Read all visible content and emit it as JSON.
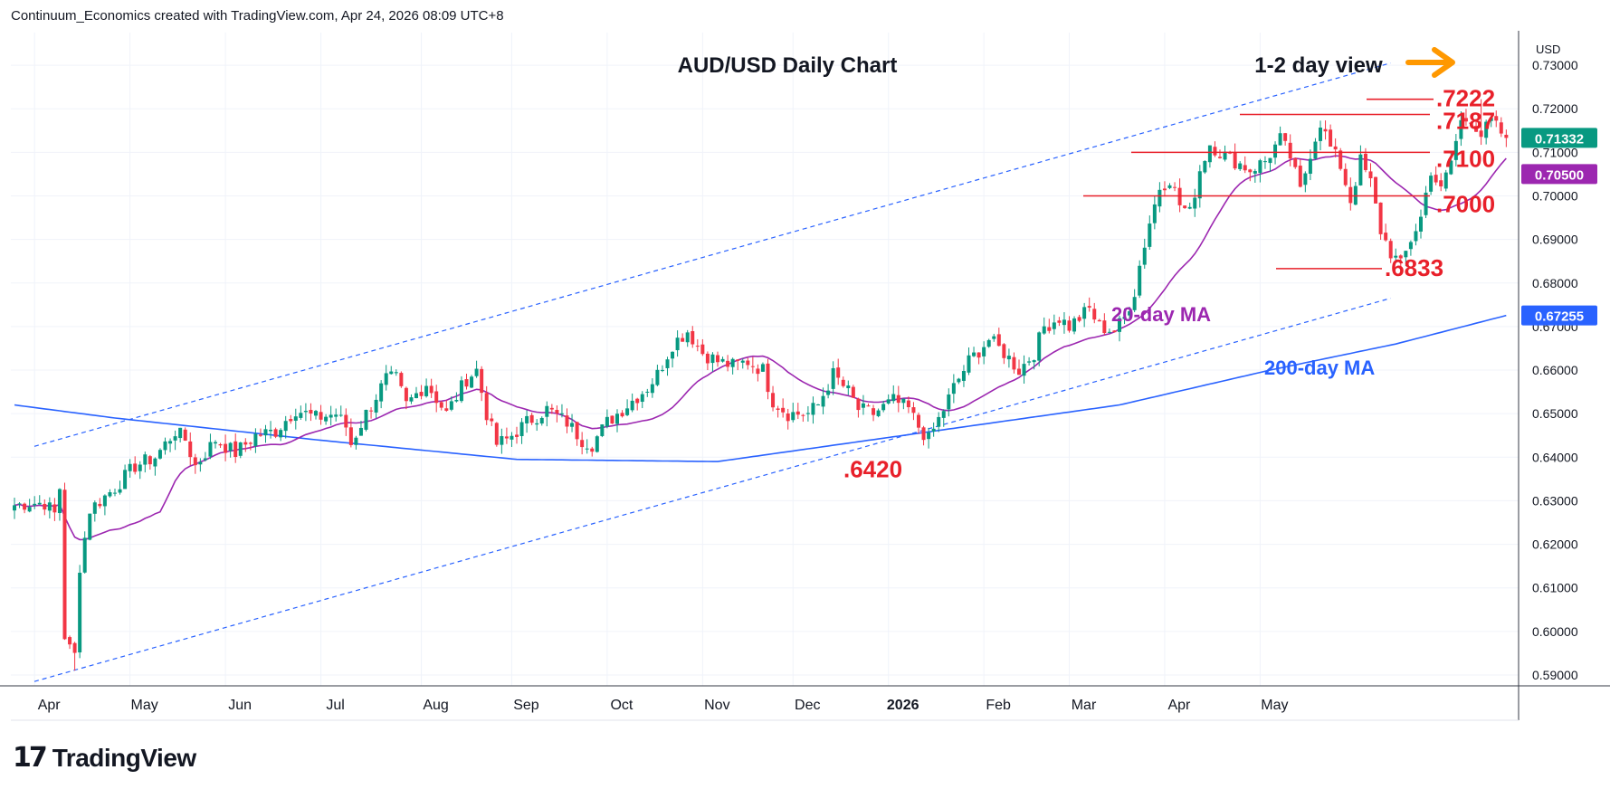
{
  "header": {
    "attribution": "Continuum_Economics created with TradingView.com, Apr 24, 2026 08:09 UTC+8"
  },
  "footer": {
    "logo_mark": "17",
    "brand": "TradingView"
  },
  "chart_data": {
    "type": "candlestick",
    "title": "AUD/USD Daily Chart",
    "subtitle": "1-2 day view",
    "currency_label": "USD",
    "ylim": [
      0.5875,
      0.7375
    ],
    "y_ticks": [
      "0.73000",
      "0.72000",
      "0.71000",
      "0.70000",
      "0.69000",
      "0.68000",
      "0.67000",
      "0.66000",
      "0.65000",
      "0.64000",
      "0.63000",
      "0.62000",
      "0.61000",
      "0.60000",
      "0.59000"
    ],
    "x_ticks": [
      "Apr",
      "May",
      "Jun",
      "Jul",
      "Aug",
      "Sep",
      "Oct",
      "Nov",
      "Dec",
      "2026",
      "Feb",
      "Mar",
      "Apr",
      "May"
    ],
    "price_badges": [
      {
        "label": "0.71332",
        "value": 0.71332,
        "color": "#089981"
      },
      {
        "label": "0.70500",
        "value": 0.705,
        "color": "#9c27b0"
      },
      {
        "label": "0.67255",
        "value": 0.67255,
        "color": "#2962ff"
      }
    ],
    "levels": [
      {
        "label": ".7222",
        "value": 0.7222
      },
      {
        "label": ".7187",
        "value": 0.7187
      },
      {
        "label": ".7100",
        "value": 0.71
      },
      {
        "label": ".7000",
        "value": 0.7
      },
      {
        "label": ".6833",
        "value": 0.6833
      },
      {
        "label": ".6420",
        "value": 0.642
      }
    ],
    "indicator_labels": [
      {
        "label": "20-day MA",
        "color": "#9c27b0"
      },
      {
        "label": "200-day MA",
        "color": "#2962ff"
      }
    ],
    "channel": {
      "upper": [
        [
          0,
          0.6425
        ],
        [
          270,
          0.7305
        ]
      ],
      "lower": [
        [
          0,
          0.5885
        ],
        [
          270,
          0.6765
        ]
      ]
    },
    "colors": {
      "up": "#089981",
      "down": "#f23645",
      "level": "#e8202a",
      "arrow": "#ff9800",
      "grid": "#f0f3fa"
    },
    "anchors": [
      [
        0,
        0.629
      ],
      [
        3,
        0.6295
      ],
      [
        6,
        0.6295
      ],
      [
        8,
        0.627
      ],
      [
        9,
        0.633
      ],
      [
        10,
        0.599
      ],
      [
        11,
        0.596
      ],
      [
        12,
        0.5945
      ],
      [
        13,
        0.615
      ],
      [
        15,
        0.628
      ],
      [
        20,
        0.633
      ],
      [
        24,
        0.638
      ],
      [
        28,
        0.64
      ],
      [
        32,
        0.646
      ],
      [
        34,
        0.644
      ],
      [
        36,
        0.638
      ],
      [
        40,
        0.644
      ],
      [
        44,
        0.641
      ],
      [
        48,
        0.645
      ],
      [
        52,
        0.646
      ],
      [
        56,
        0.651
      ],
      [
        60,
        0.649
      ],
      [
        64,
        0.65
      ],
      [
        66,
        0.647
      ],
      [
        67,
        0.643
      ],
      [
        70,
        0.65
      ],
      [
        74,
        0.658
      ],
      [
        76,
        0.658
      ],
      [
        78,
        0.652
      ],
      [
        82,
        0.657
      ],
      [
        86,
        0.65
      ],
      [
        90,
        0.658
      ],
      [
        92,
        0.66
      ],
      [
        94,
        0.65
      ],
      [
        96,
        0.643
      ],
      [
        98,
        0.644
      ],
      [
        102,
        0.648
      ],
      [
        106,
        0.651
      ],
      [
        110,
        0.648
      ],
      [
        113,
        0.644
      ],
      [
        115,
        0.643
      ],
      [
        118,
        0.648
      ],
      [
        122,
        0.652
      ],
      [
        126,
        0.656
      ],
      [
        128,
        0.659
      ],
      [
        131,
        0.666
      ],
      [
        134,
        0.669
      ],
      [
        137,
        0.664
      ],
      [
        140,
        0.662
      ],
      [
        143,
        0.661
      ],
      [
        146,
        0.662
      ],
      [
        149,
        0.66
      ],
      [
        151,
        0.653
      ],
      [
        154,
        0.65
      ],
      [
        158,
        0.65
      ],
      [
        160,
        0.652
      ],
      [
        163,
        0.659
      ],
      [
        166,
        0.655
      ],
      [
        168,
        0.651
      ],
      [
        171,
        0.65
      ],
      [
        175,
        0.653
      ],
      [
        178,
        0.651
      ],
      [
        180,
        0.647
      ],
      [
        182,
        0.644
      ],
      [
        185,
        0.651
      ],
      [
        187,
        0.656
      ],
      [
        190,
        0.662
      ],
      [
        194,
        0.667
      ],
      [
        197,
        0.664
      ],
      [
        200,
        0.66
      ],
      [
        203,
        0.664
      ],
      [
        205,
        0.67
      ],
      [
        208,
        0.672
      ],
      [
        210,
        0.67
      ],
      [
        214,
        0.674
      ],
      [
        216,
        0.67
      ],
      [
        219,
        0.669
      ],
      [
        221,
        0.672
      ],
      [
        223,
        0.678
      ],
      [
        224,
        0.684
      ],
      [
        226,
        0.694
      ],
      [
        228,
        0.702
      ],
      [
        230,
        0.704
      ],
      [
        232,
        0.698
      ],
      [
        234,
        0.696
      ],
      [
        236,
        0.706
      ],
      [
        238,
        0.712
      ],
      [
        240,
        0.71
      ],
      [
        243,
        0.708
      ],
      [
        246,
        0.706
      ],
      [
        249,
        0.708
      ],
      [
        252,
        0.713
      ],
      [
        254,
        0.709
      ],
      [
        256,
        0.701
      ],
      [
        258,
        0.71
      ],
      [
        260,
        0.717
      ],
      [
        262,
        0.711
      ],
      [
        264,
        0.707
      ],
      [
        266,
        0.699
      ],
      [
        268,
        0.708
      ],
      [
        270,
        0.703
      ],
      [
        272,
        0.692
      ],
      [
        274,
        0.687
      ],
      [
        276,
        0.684
      ],
      [
        278,
        0.69
      ],
      [
        280,
        0.695
      ],
      [
        282,
        0.706
      ],
      [
        284,
        0.701
      ],
      [
        286,
        0.708
      ],
      [
        288,
        0.717
      ],
      [
        290,
        0.718
      ],
      [
        292,
        0.714
      ],
      [
        294,
        0.717
      ],
      [
        296,
        0.7145
      ],
      [
        297,
        0.71332
      ]
    ],
    "notable_extremes": [
      {
        "bar": 12,
        "low": 0.591
      },
      {
        "bar": 182,
        "low": 0.642
      },
      {
        "bar": 276,
        "low": 0.6833
      },
      {
        "bar": 292,
        "high": 0.7222
      }
    ],
    "ma200_anchors": [
      [
        0,
        0.652
      ],
      [
        20,
        0.649
      ],
      [
        60,
        0.644
      ],
      [
        100,
        0.6395
      ],
      [
        140,
        0.639
      ],
      [
        180,
        0.6455
      ],
      [
        220,
        0.652
      ],
      [
        250,
        0.66
      ],
      [
        275,
        0.666
      ],
      [
        297,
        0.67255
      ]
    ]
  }
}
